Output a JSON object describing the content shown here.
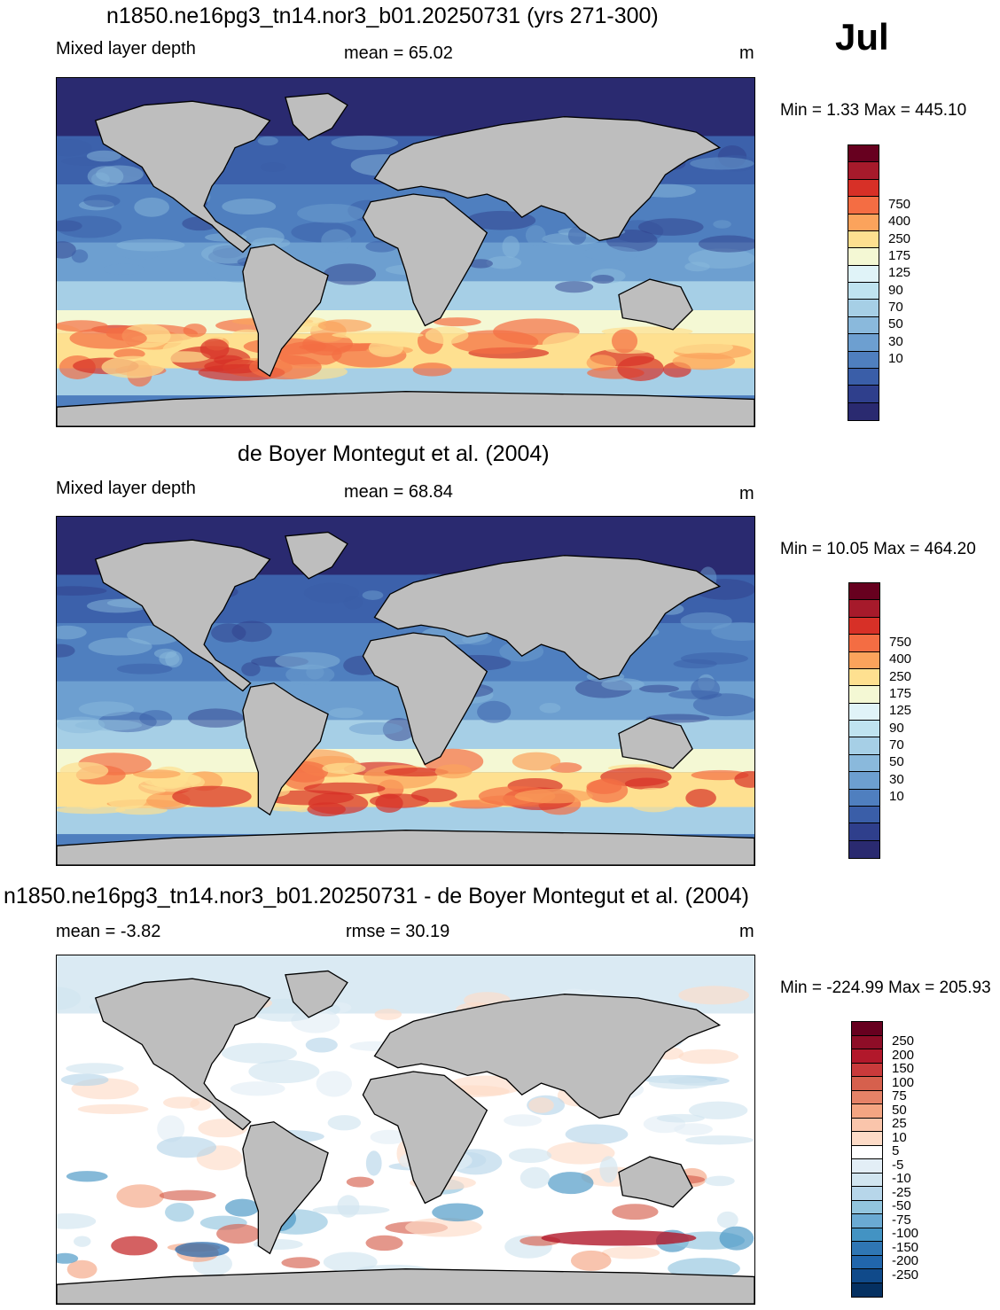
{
  "month": "Jul",
  "panels": [
    {
      "title": "n1850.ne16pg3_tn14.nor3_b01.20250731 (yrs 271-300)",
      "left_label": "Mixed layer depth",
      "center_label": "mean =  65.02",
      "units": "m",
      "minmax": "Min =   1.33 Max = 445.10",
      "colorbar": {
        "labels": [
          "750",
          "400",
          "250",
          "175",
          "125",
          "90",
          "70",
          "50",
          "30",
          "10"
        ],
        "colors": [
          "#67001f",
          "#a61a2b",
          "#d73027",
          "#f46d43",
          "#fba35c",
          "#fee090",
          "#f4f8d4",
          "#e0f3f8",
          "#bfe3f0",
          "#a6cfe6",
          "#8ab9dc",
          "#6d9fd0",
          "#4f7fbf",
          "#3a5ea8",
          "#2f3f8c",
          "#2a2a70"
        ]
      },
      "pattern": "model"
    },
    {
      "title": "de Boyer Montegut et al. (2004)",
      "left_label": "Mixed layer depth",
      "center_label": "mean =  68.84",
      "units": "m",
      "minmax": "Min =  10.05 Max = 464.20",
      "colorbar": {
        "labels": [
          "750",
          "400",
          "250",
          "175",
          "125",
          "90",
          "70",
          "50",
          "30",
          "10"
        ],
        "colors": [
          "#67001f",
          "#a61a2b",
          "#d73027",
          "#f46d43",
          "#fba35c",
          "#fee090",
          "#f4f8d4",
          "#e0f3f8",
          "#bfe3f0",
          "#a6cfe6",
          "#8ab9dc",
          "#6d9fd0",
          "#4f7fbf",
          "#3a5ea8",
          "#2f3f8c",
          "#2a2a70"
        ]
      },
      "pattern": "obs"
    },
    {
      "title": "n1850.ne16pg3_tn14.nor3_b01.20250731 - de Boyer Montegut et al. (2004)",
      "left_label": "mean =  -3.82",
      "center_label": "rmse =  30.19",
      "units": "m",
      "minmax": "Min = -224.99 Max = 205.93",
      "colorbar": {
        "labels": [
          "250",
          "200",
          "150",
          "100",
          "75",
          "50",
          "25",
          "10",
          "5",
          "-5",
          "-10",
          "-25",
          "-50",
          "-75",
          "-100",
          "-150",
          "-200",
          "-250"
        ],
        "colors": [
          "#67001f",
          "#8e0d27",
          "#b2182b",
          "#c93a3b",
          "#d6604d",
          "#e58267",
          "#f4a582",
          "#fac5ab",
          "#fddbc7",
          "#ffffff",
          "#e3eef6",
          "#d1e5f0",
          "#b7d6ea",
          "#92c5de",
          "#6aaad3",
          "#4393c3",
          "#2f76b4",
          "#2166ac",
          "#104a8a",
          "#053061"
        ]
      },
      "pattern": "diff"
    }
  ]
}
